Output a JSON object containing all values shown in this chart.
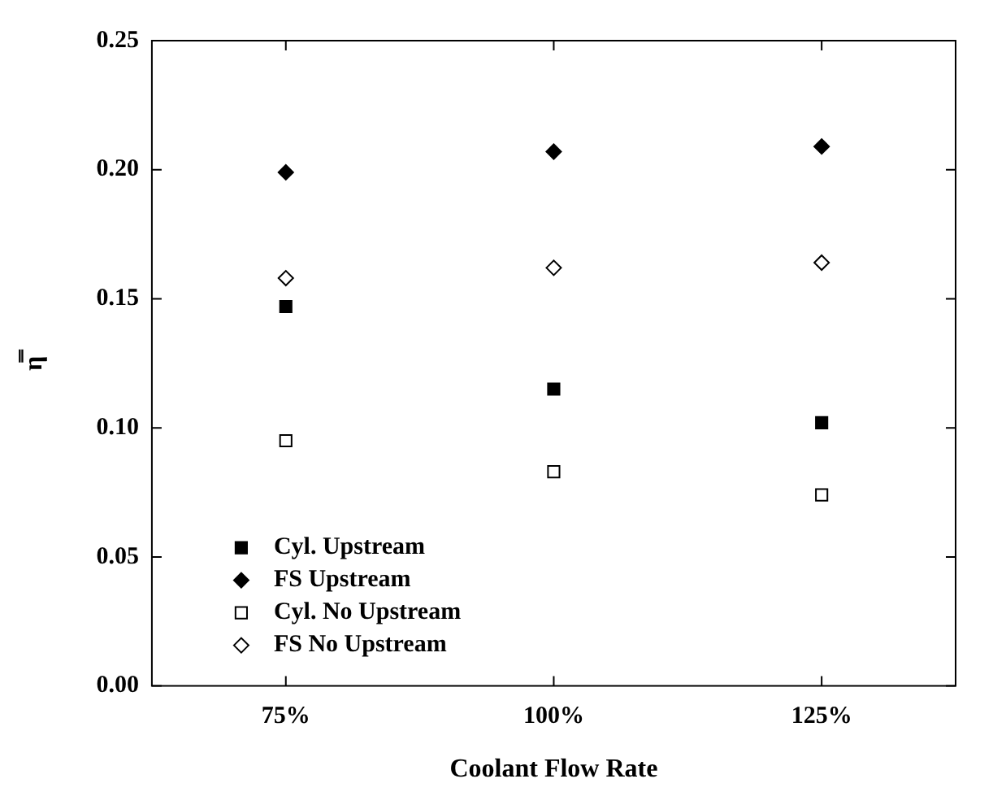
{
  "chart_data": {
    "type": "scatter",
    "xlabel": "Coolant Flow Rate",
    "ylabel": "η̿",
    "categories": [
      "75%",
      "100%",
      "125%"
    ],
    "ylim": [
      0,
      0.25
    ],
    "yticks": [
      {
        "value": 0,
        "label": "0.00"
      },
      {
        "value": 0.05,
        "label": "0.05"
      },
      {
        "value": 0.1,
        "label": "0.10"
      },
      {
        "value": 0.15,
        "label": "0.15"
      },
      {
        "value": 0.2,
        "label": "0.20"
      },
      {
        "value": 0.25,
        "label": "0.25"
      }
    ],
    "grid": false,
    "legend": "bottom left",
    "series": [
      {
        "name": "Cyl. Upstream",
        "color": "#000000",
        "marker": "square",
        "values": [
          0.147,
          0.115,
          0.102
        ]
      },
      {
        "name": "FS Upstream",
        "color": "#000000",
        "marker": "diamond",
        "values": [
          0.199,
          0.207,
          0.209
        ]
      },
      {
        "name": "Cyl. No Upstream",
        "color": "#000000",
        "marker": "square",
        "values": [
          0.095,
          0.083,
          0.074
        ]
      },
      {
        "name": "FS No Upstream",
        "color": "#000000",
        "marker": "diamond",
        "values": [
          0.158,
          0.162,
          0.164
        ]
      }
    ]
  }
}
